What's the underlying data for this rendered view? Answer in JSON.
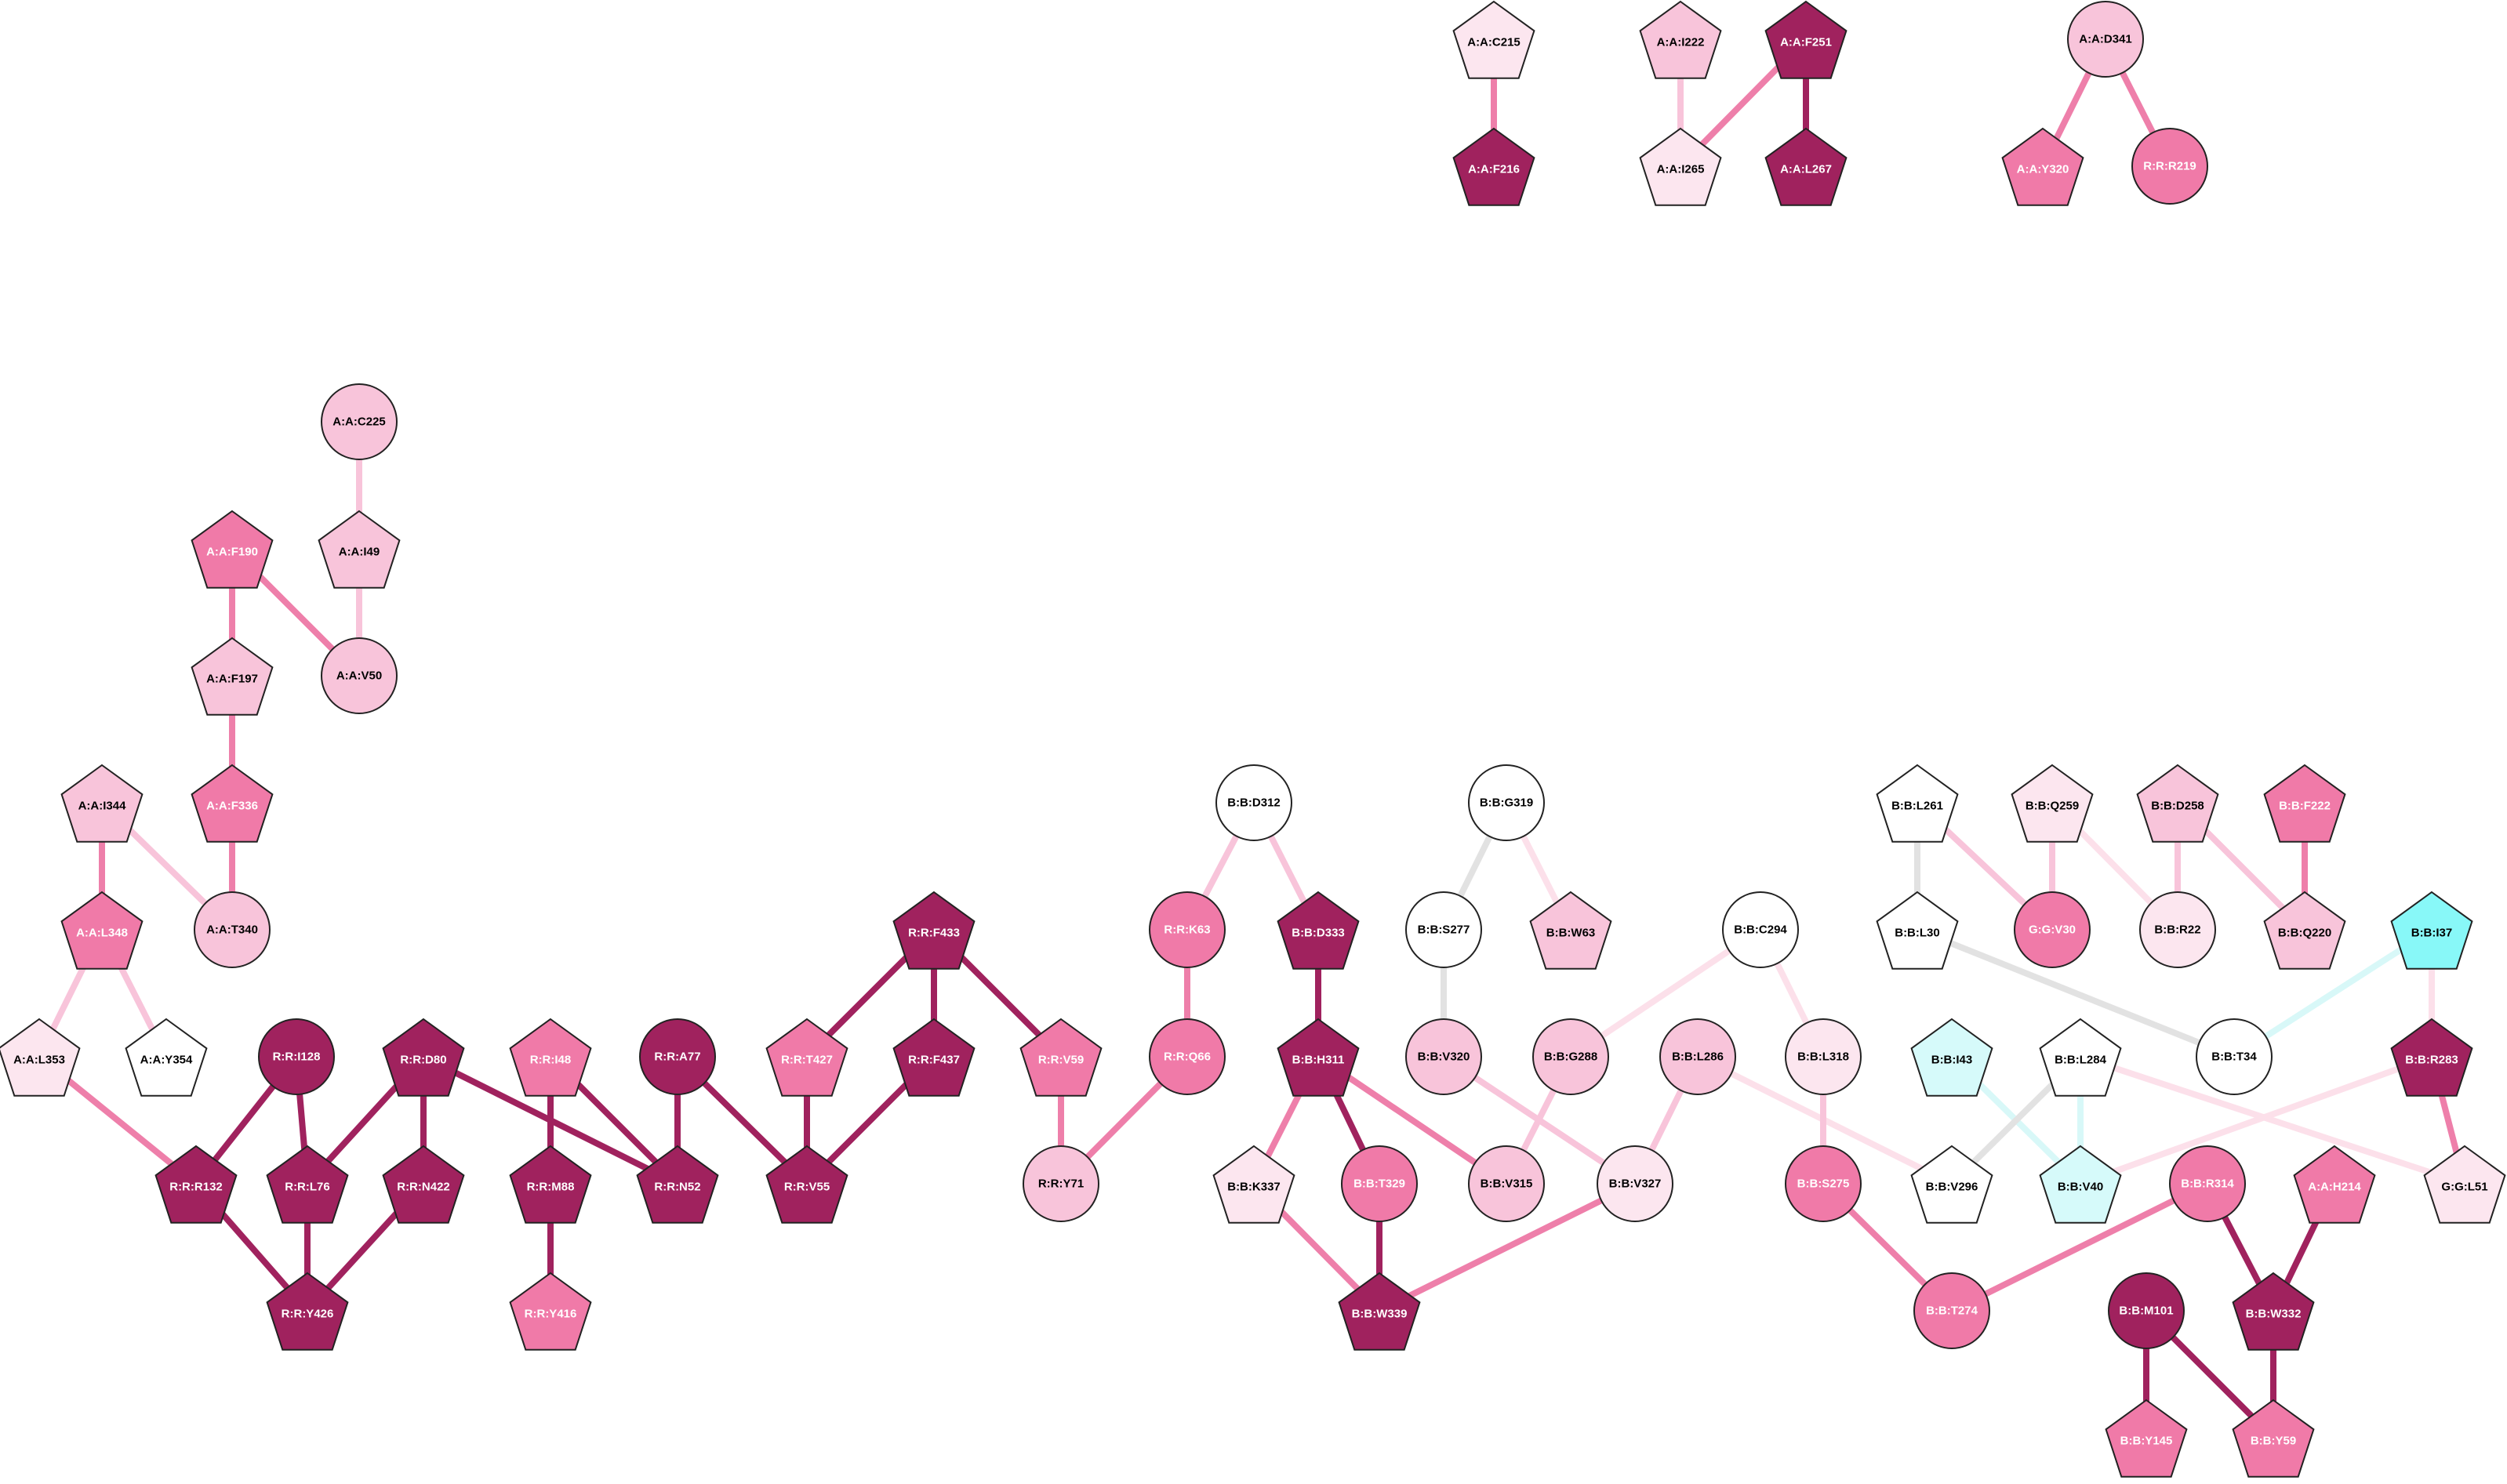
{
  "palette": {
    "dark": "#A0225E",
    "medium": "#F07AA8",
    "light": "#F8C4DA",
    "pale": "#FCE6EF",
    "white": "#FFFFFF",
    "cyan": "#88F8F8",
    "cyan_light": "#D6FAFA",
    "edge_dark": "#A0225E",
    "edge_medium": "#EE7FAA",
    "edge_light": "#F8C4DA",
    "edge_pale": "#FCE0EA",
    "edge_gray": "#E2E2E2",
    "edge_cyan": "#D8F8F8",
    "text_dark": "#000000",
    "text_light": "#FFFFFF"
  },
  "nodes": [
    {
      "id": "A:A:C215",
      "shape": "pentagon",
      "fill": "pale"
    },
    {
      "id": "A:A:F216",
      "shape": "pentagon",
      "fill": "dark"
    },
    {
      "id": "A:A:I222",
      "shape": "pentagon",
      "fill": "light"
    },
    {
      "id": "A:A:F251",
      "shape": "pentagon",
      "fill": "dark"
    },
    {
      "id": "A:A:I265",
      "shape": "pentagon",
      "fill": "pale"
    },
    {
      "id": "A:A:L267",
      "shape": "pentagon",
      "fill": "dark"
    },
    {
      "id": "A:A:D341",
      "shape": "circle",
      "fill": "light"
    },
    {
      "id": "A:A:Y320",
      "shape": "pentagon",
      "fill": "medium"
    },
    {
      "id": "R:R:R219",
      "shape": "circle",
      "fill": "medium"
    },
    {
      "id": "A:A:C225",
      "shape": "circle",
      "fill": "light"
    },
    {
      "id": "A:A:I49",
      "shape": "pentagon",
      "fill": "light"
    },
    {
      "id": "A:A:F190",
      "shape": "pentagon",
      "fill": "medium"
    },
    {
      "id": "A:A:V50",
      "shape": "circle",
      "fill": "light"
    },
    {
      "id": "A:A:F197",
      "shape": "pentagon",
      "fill": "light"
    },
    {
      "id": "A:A:F336",
      "shape": "pentagon",
      "fill": "medium"
    },
    {
      "id": "A:A:I344",
      "shape": "pentagon",
      "fill": "light"
    },
    {
      "id": "A:A:T340",
      "shape": "circle",
      "fill": "light"
    },
    {
      "id": "A:A:L348",
      "shape": "pentagon",
      "fill": "medium"
    },
    {
      "id": "A:A:L353",
      "shape": "pentagon",
      "fill": "pale"
    },
    {
      "id": "A:A:Y354",
      "shape": "pentagon",
      "fill": "white"
    },
    {
      "id": "R:R:I128",
      "shape": "circle",
      "fill": "dark"
    },
    {
      "id": "R:R:D80",
      "shape": "pentagon",
      "fill": "dark"
    },
    {
      "id": "R:R:I48",
      "shape": "pentagon",
      "fill": "medium"
    },
    {
      "id": "R:R:A77",
      "shape": "circle",
      "fill": "dark"
    },
    {
      "id": "R:R:R132",
      "shape": "pentagon",
      "fill": "dark"
    },
    {
      "id": "R:R:L76",
      "shape": "pentagon",
      "fill": "dark"
    },
    {
      "id": "R:R:N422",
      "shape": "pentagon",
      "fill": "dark"
    },
    {
      "id": "R:R:M88",
      "shape": "pentagon",
      "fill": "dark"
    },
    {
      "id": "R:R:N52",
      "shape": "pentagon",
      "fill": "dark"
    },
    {
      "id": "R:R:Y426",
      "shape": "pentagon",
      "fill": "dark"
    },
    {
      "id": "R:R:Y416",
      "shape": "pentagon",
      "fill": "medium"
    },
    {
      "id": "R:R:F433",
      "shape": "pentagon",
      "fill": "dark"
    },
    {
      "id": "R:R:T427",
      "shape": "pentagon",
      "fill": "medium"
    },
    {
      "id": "R:R:F437",
      "shape": "pentagon",
      "fill": "dark"
    },
    {
      "id": "R:R:V59",
      "shape": "pentagon",
      "fill": "medium"
    },
    {
      "id": "R:R:V55",
      "shape": "pentagon",
      "fill": "dark"
    },
    {
      "id": "R:R:Y71",
      "shape": "circle",
      "fill": "light"
    },
    {
      "id": "B:B:D312",
      "shape": "circle",
      "fill": "white"
    },
    {
      "id": "R:R:K63",
      "shape": "circle",
      "fill": "medium"
    },
    {
      "id": "B:B:D333",
      "shape": "pentagon",
      "fill": "dark"
    },
    {
      "id": "R:R:Q66",
      "shape": "circle",
      "fill": "medium"
    },
    {
      "id": "B:B:H311",
      "shape": "pentagon",
      "fill": "dark"
    },
    {
      "id": "B:B:K337",
      "shape": "pentagon",
      "fill": "pale"
    },
    {
      "id": "B:B:T329",
      "shape": "circle",
      "fill": "medium"
    },
    {
      "id": "B:B:W339",
      "shape": "pentagon",
      "fill": "dark"
    },
    {
      "id": "B:B:G319",
      "shape": "circle",
      "fill": "white"
    },
    {
      "id": "B:B:S277",
      "shape": "circle",
      "fill": "white"
    },
    {
      "id": "B:B:W63",
      "shape": "pentagon",
      "fill": "light"
    },
    {
      "id": "B:B:V320",
      "shape": "circle",
      "fill": "light"
    },
    {
      "id": "B:B:G288",
      "shape": "circle",
      "fill": "light"
    },
    {
      "id": "B:B:L286",
      "shape": "circle",
      "fill": "light"
    },
    {
      "id": "B:B:V315",
      "shape": "circle",
      "fill": "light"
    },
    {
      "id": "B:B:V327",
      "shape": "circle",
      "fill": "pale"
    },
    {
      "id": "B:B:C294",
      "shape": "circle",
      "fill": "white"
    },
    {
      "id": "B:B:L318",
      "shape": "circle",
      "fill": "pale"
    },
    {
      "id": "B:B:S275",
      "shape": "circle",
      "fill": "medium"
    },
    {
      "id": "B:B:T274",
      "shape": "circle",
      "fill": "medium"
    },
    {
      "id": "B:B:L261",
      "shape": "pentagon",
      "fill": "white"
    },
    {
      "id": "B:B:Q259",
      "shape": "pentagon",
      "fill": "pale"
    },
    {
      "id": "B:B:D258",
      "shape": "pentagon",
      "fill": "light"
    },
    {
      "id": "B:B:F222",
      "shape": "pentagon",
      "fill": "medium"
    },
    {
      "id": "B:B:L30",
      "shape": "pentagon",
      "fill": "white"
    },
    {
      "id": "G:G:V30",
      "shape": "circle",
      "fill": "medium"
    },
    {
      "id": "B:B:R22",
      "shape": "circle",
      "fill": "pale"
    },
    {
      "id": "B:B:Q220",
      "shape": "pentagon",
      "fill": "light"
    },
    {
      "id": "B:B:I37",
      "shape": "pentagon",
      "fill": "cyan"
    },
    {
      "id": "B:B:T34",
      "shape": "circle",
      "fill": "white"
    },
    {
      "id": "B:B:I43",
      "shape": "pentagon",
      "fill": "cyan_light"
    },
    {
      "id": "B:B:L284",
      "shape": "pentagon",
      "fill": "white"
    },
    {
      "id": "B:B:R283",
      "shape": "pentagon",
      "fill": "dark"
    },
    {
      "id": "B:B:V296",
      "shape": "pentagon",
      "fill": "white"
    },
    {
      "id": "B:B:V40",
      "shape": "pentagon",
      "fill": "cyan_light"
    },
    {
      "id": "G:G:L51",
      "shape": "pentagon",
      "fill": "pale"
    },
    {
      "id": "B:B:R314",
      "shape": "circle",
      "fill": "medium"
    },
    {
      "id": "A:A:H214",
      "shape": "pentagon",
      "fill": "medium"
    },
    {
      "id": "B:B:W332",
      "shape": "pentagon",
      "fill": "dark"
    },
    {
      "id": "B:B:M101",
      "shape": "circle",
      "fill": "dark"
    },
    {
      "id": "B:B:Y145",
      "shape": "pentagon",
      "fill": "medium"
    },
    {
      "id": "B:B:Y59",
      "shape": "pentagon",
      "fill": "medium"
    }
  ],
  "edges": [
    {
      "from": "A:A:C215",
      "to": "A:A:F216",
      "color": "edge_medium"
    },
    {
      "from": "A:A:I222",
      "to": "A:A:I265",
      "color": "edge_light"
    },
    {
      "from": "A:A:F251",
      "to": "A:A:I265",
      "color": "edge_medium"
    },
    {
      "from": "A:A:F251",
      "to": "A:A:L267",
      "color": "edge_dark"
    },
    {
      "from": "A:A:D341",
      "to": "A:A:Y320",
      "color": "edge_medium"
    },
    {
      "from": "A:A:D341",
      "to": "R:R:R219",
      "color": "edge_medium"
    },
    {
      "from": "A:A:C225",
      "to": "A:A:I49",
      "color": "edge_light"
    },
    {
      "from": "A:A:I49",
      "to": "A:A:V50",
      "color": "edge_light"
    },
    {
      "from": "A:A:F190",
      "to": "A:A:V50",
      "color": "edge_medium"
    },
    {
      "from": "A:A:F190",
      "to": "A:A:F197",
      "color": "edge_medium"
    },
    {
      "from": "A:A:F197",
      "to": "A:A:F336",
      "color": "edge_medium"
    },
    {
      "from": "A:A:F336",
      "to": "A:A:T340",
      "color": "edge_medium"
    },
    {
      "from": "A:A:I344",
      "to": "A:A:T340",
      "color": "edge_light"
    },
    {
      "from": "A:A:I344",
      "to": "A:A:L348",
      "color": "edge_medium"
    },
    {
      "from": "A:A:L348",
      "to": "A:A:L353",
      "color": "edge_light"
    },
    {
      "from": "A:A:L348",
      "to": "A:A:Y354",
      "color": "edge_light"
    },
    {
      "from": "A:A:L353",
      "to": "R:R:R132",
      "color": "edge_medium"
    },
    {
      "from": "R:R:I128",
      "to": "R:R:R132",
      "color": "edge_dark"
    },
    {
      "from": "R:R:I128",
      "to": "R:R:L76",
      "color": "edge_dark"
    },
    {
      "from": "R:R:D80",
      "to": "R:R:L76",
      "color": "edge_dark"
    },
    {
      "from": "R:R:D80",
      "to": "R:R:N422",
      "color": "edge_dark"
    },
    {
      "from": "R:R:D80",
      "to": "R:R:N52",
      "color": "edge_dark"
    },
    {
      "from": "R:R:R132",
      "to": "R:R:Y426",
      "color": "edge_dark"
    },
    {
      "from": "R:R:L76",
      "to": "R:R:Y426",
      "color": "edge_dark"
    },
    {
      "from": "R:R:N422",
      "to": "R:R:Y426",
      "color": "edge_dark"
    },
    {
      "from": "R:R:I48",
      "to": "R:R:M88",
      "color": "edge_dark"
    },
    {
      "from": "R:R:I48",
      "to": "R:R:N52",
      "color": "edge_dark"
    },
    {
      "from": "R:R:M88",
      "to": "R:R:Y416",
      "color": "edge_dark"
    },
    {
      "from": "R:R:A77",
      "to": "R:R:N52",
      "color": "edge_dark"
    },
    {
      "from": "R:R:A77",
      "to": "R:R:V55",
      "color": "edge_dark"
    },
    {
      "from": "R:R:F433",
      "to": "R:R:T427",
      "color": "edge_dark"
    },
    {
      "from": "R:R:F433",
      "to": "R:R:F437",
      "color": "edge_dark"
    },
    {
      "from": "R:R:F433",
      "to": "R:R:V59",
      "color": "edge_dark"
    },
    {
      "from": "R:R:T427",
      "to": "R:R:V55",
      "color": "edge_dark"
    },
    {
      "from": "R:R:F437",
      "to": "R:R:V55",
      "color": "edge_dark"
    },
    {
      "from": "R:R:V59",
      "to": "R:R:Y71",
      "color": "edge_medium"
    },
    {
      "from": "R:R:Q66",
      "to": "R:R:Y71",
      "color": "edge_medium"
    },
    {
      "from": "B:B:D312",
      "to": "R:R:K63",
      "color": "edge_light"
    },
    {
      "from": "B:B:D312",
      "to": "B:B:D333",
      "color": "edge_light"
    },
    {
      "from": "R:R:K63",
      "to": "R:R:Q66",
      "color": "edge_medium"
    },
    {
      "from": "B:B:D333",
      "to": "B:B:H311",
      "color": "edge_dark"
    },
    {
      "from": "B:B:H311",
      "to": "B:B:K337",
      "color": "edge_medium"
    },
    {
      "from": "B:B:H311",
      "to": "B:B:T329",
      "color": "edge_dark"
    },
    {
      "from": "B:B:H311",
      "to": "B:B:V315",
      "color": "edge_medium"
    },
    {
      "from": "B:B:K337",
      "to": "B:B:W339",
      "color": "edge_medium"
    },
    {
      "from": "B:B:T329",
      "to": "B:B:W339",
      "color": "edge_dark"
    },
    {
      "from": "B:B:V327",
      "to": "B:B:W339",
      "color": "edge_medium"
    },
    {
      "from": "B:B:G319",
      "to": "B:B:S277",
      "color": "edge_gray"
    },
    {
      "from": "B:B:G319",
      "to": "B:B:W63",
      "color": "edge_pale"
    },
    {
      "from": "B:B:S277",
      "to": "B:B:V320",
      "color": "edge_gray"
    },
    {
      "from": "B:B:V320",
      "to": "B:B:V327",
      "color": "edge_light"
    },
    {
      "from": "B:B:G288",
      "to": "B:B:V315",
      "color": "edge_light"
    },
    {
      "from": "B:B:C294",
      "to": "B:B:G288",
      "color": "edge_pale"
    },
    {
      "from": "B:B:L286",
      "to": "B:B:V327",
      "color": "edge_light"
    },
    {
      "from": "B:B:L286",
      "to": "B:B:V296",
      "color": "edge_pale"
    },
    {
      "from": "B:B:C294",
      "to": "B:B:L318",
      "color": "edge_pale"
    },
    {
      "from": "B:B:L318",
      "to": "B:B:S275",
      "color": "edge_light"
    },
    {
      "from": "B:B:S275",
      "to": "B:B:T274",
      "color": "edge_medium"
    },
    {
      "from": "B:B:R314",
      "to": "B:B:T274",
      "color": "edge_medium"
    },
    {
      "from": "B:B:L261",
      "to": "G:G:V30",
      "color": "edge_light"
    },
    {
      "from": "B:B:L261",
      "to": "B:B:L30",
      "color": "edge_gray"
    },
    {
      "from": "B:B:L30",
      "to": "B:B:T34",
      "color": "edge_gray"
    },
    {
      "from": "B:B:Q259",
      "to": "G:G:V30",
      "color": "edge_light"
    },
    {
      "from": "B:B:Q259",
      "to": "B:B:R22",
      "color": "edge_pale"
    },
    {
      "from": "B:B:D258",
      "to": "B:B:R22",
      "color": "edge_light"
    },
    {
      "from": "B:B:D258",
      "to": "B:B:Q220",
      "color": "edge_light"
    },
    {
      "from": "B:B:F222",
      "to": "B:B:Q220",
      "color": "edge_medium"
    },
    {
      "from": "B:B:I37",
      "to": "B:B:T34",
      "color": "edge_cyan"
    },
    {
      "from": "B:B:I37",
      "to": "B:B:R283",
      "color": "edge_pale"
    },
    {
      "from": "B:B:R283",
      "to": "G:G:L51",
      "color": "edge_medium"
    },
    {
      "from": "B:B:R283",
      "to": "B:B:V40",
      "color": "edge_pale"
    },
    {
      "from": "B:B:I43",
      "to": "B:B:V40",
      "color": "edge_cyan"
    },
    {
      "from": "B:B:L284",
      "to": "B:B:V296",
      "color": "edge_gray"
    },
    {
      "from": "B:B:L284",
      "to": "B:B:V40",
      "color": "edge_cyan"
    },
    {
      "from": "B:B:L284",
      "to": "G:G:L51",
      "color": "edge_pale"
    },
    {
      "from": "A:A:H214",
      "to": "B:B:W332",
      "color": "edge_dark"
    },
    {
      "from": "B:B:R314",
      "to": "B:B:W332",
      "color": "edge_dark"
    },
    {
      "from": "B:B:W332",
      "to": "B:B:Y59",
      "color": "edge_dark"
    },
    {
      "from": "B:B:M101",
      "to": "B:B:Y59",
      "color": "edge_dark"
    },
    {
      "from": "B:B:M101",
      "to": "B:B:Y145",
      "color": "edge_dark"
    }
  ]
}
